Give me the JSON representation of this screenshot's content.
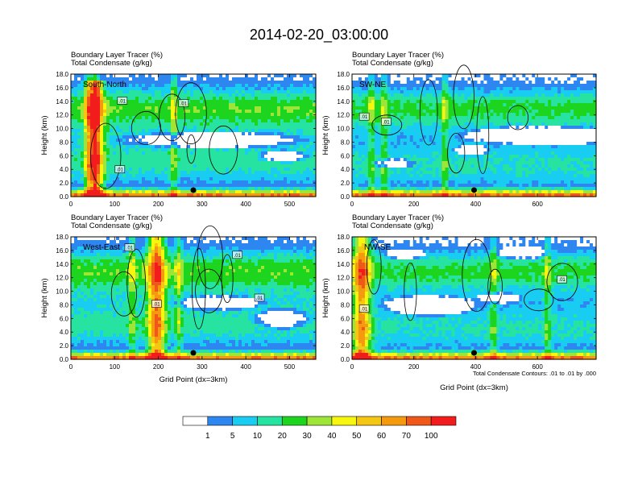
{
  "figure_title": "2014-02-20_03:00:00",
  "colors": {
    "shading": [
      "#ffffff",
      "#2e87f0",
      "#19cdf2",
      "#27e3a1",
      "#1dd51e",
      "#9de536",
      "#f6f60f",
      "#f5c612",
      "#f59a0f",
      "#f0581a",
      "#f21c1c"
    ],
    "contour": "#000000",
    "marker": "#000000"
  },
  "chart_data": [
    {
      "type": "heatmap",
      "panel_label": "South-North",
      "title_line1": "Boundary Layer Tracer   (%)",
      "title_line2": "Total Condensate   (g/kg)",
      "ylabel": "Height (km)",
      "xlabel": "",
      "xlim": [
        0,
        560
      ],
      "ylim": [
        0,
        18
      ],
      "xticks": [
        "0",
        "100",
        "200",
        "300",
        "400",
        "500"
      ],
      "yticks": [
        "0.0",
        "2.0",
        "4.0",
        "6.0",
        "8.0",
        "10.0",
        "12.0",
        "14.0",
        "16.0",
        "18.0"
      ],
      "contour_labels": [
        ".01",
        ".01",
        ".01"
      ],
      "marker_x": 280
    },
    {
      "type": "heatmap",
      "panel_label": "SW-NE",
      "title_line1": "Boundary Layer Tracer   (%)",
      "title_line2": "Total Condensate   (g/kg)",
      "ylabel": "Height (km)",
      "xlabel": "",
      "xlim": [
        0,
        790
      ],
      "ylim": [
        0,
        18
      ],
      "xticks": [
        "0",
        "200",
        "400",
        "600"
      ],
      "yticks": [
        "0.0",
        "2.0",
        "4.0",
        "6.0",
        "8.0",
        "10.0",
        "12.0",
        "14.0",
        "16.0",
        "18.0"
      ],
      "contour_labels": [
        ".01",
        ".01"
      ],
      "marker_x": 395
    },
    {
      "type": "heatmap",
      "panel_label": "West-East",
      "title_line1": "Boundary Layer Tracer   (%)",
      "title_line2": "Total Condensate   (g/kg)",
      "ylabel": "Height (km)",
      "xlabel": "Grid Point (dx=3km)",
      "xlim": [
        0,
        560
      ],
      "ylim": [
        0,
        18
      ],
      "xticks": [
        "0",
        "100",
        "200",
        "300",
        "400",
        "500"
      ],
      "yticks": [
        "0.0",
        "2.0",
        "4.0",
        "6.0",
        "8.0",
        "10.0",
        "12.0",
        "14.0",
        "16.0",
        "18.0"
      ],
      "contour_labels": [
        ".01",
        ".01",
        ".01",
        ".01"
      ],
      "marker_x": 280
    },
    {
      "type": "heatmap",
      "panel_label": "NW-SE",
      "title_line1": "Boundary Layer Tracer   (%)",
      "title_line2": "Total Condensate   (g/kg)",
      "ylabel": "Height (km)",
      "xlabel": "Grid Point (dx=3km)",
      "xlim": [
        0,
        790
      ],
      "ylim": [
        0,
        18
      ],
      "xticks": [
        "0",
        "200",
        "400",
        "600"
      ],
      "yticks": [
        "0.0",
        "2.0",
        "4.0",
        "6.0",
        "8.0",
        "10.0",
        "12.0",
        "14.0",
        "16.0",
        "18.0"
      ],
      "contour_labels": [
        ".01",
        ".01"
      ],
      "marker_x": 395,
      "footnote": "Total Condensate Contours: .01 to .01 by .000"
    }
  ],
  "colorbar": {
    "labels": [
      "1",
      "5",
      "10",
      "20",
      "30",
      "40",
      "50",
      "60",
      "70",
      "100"
    ]
  }
}
